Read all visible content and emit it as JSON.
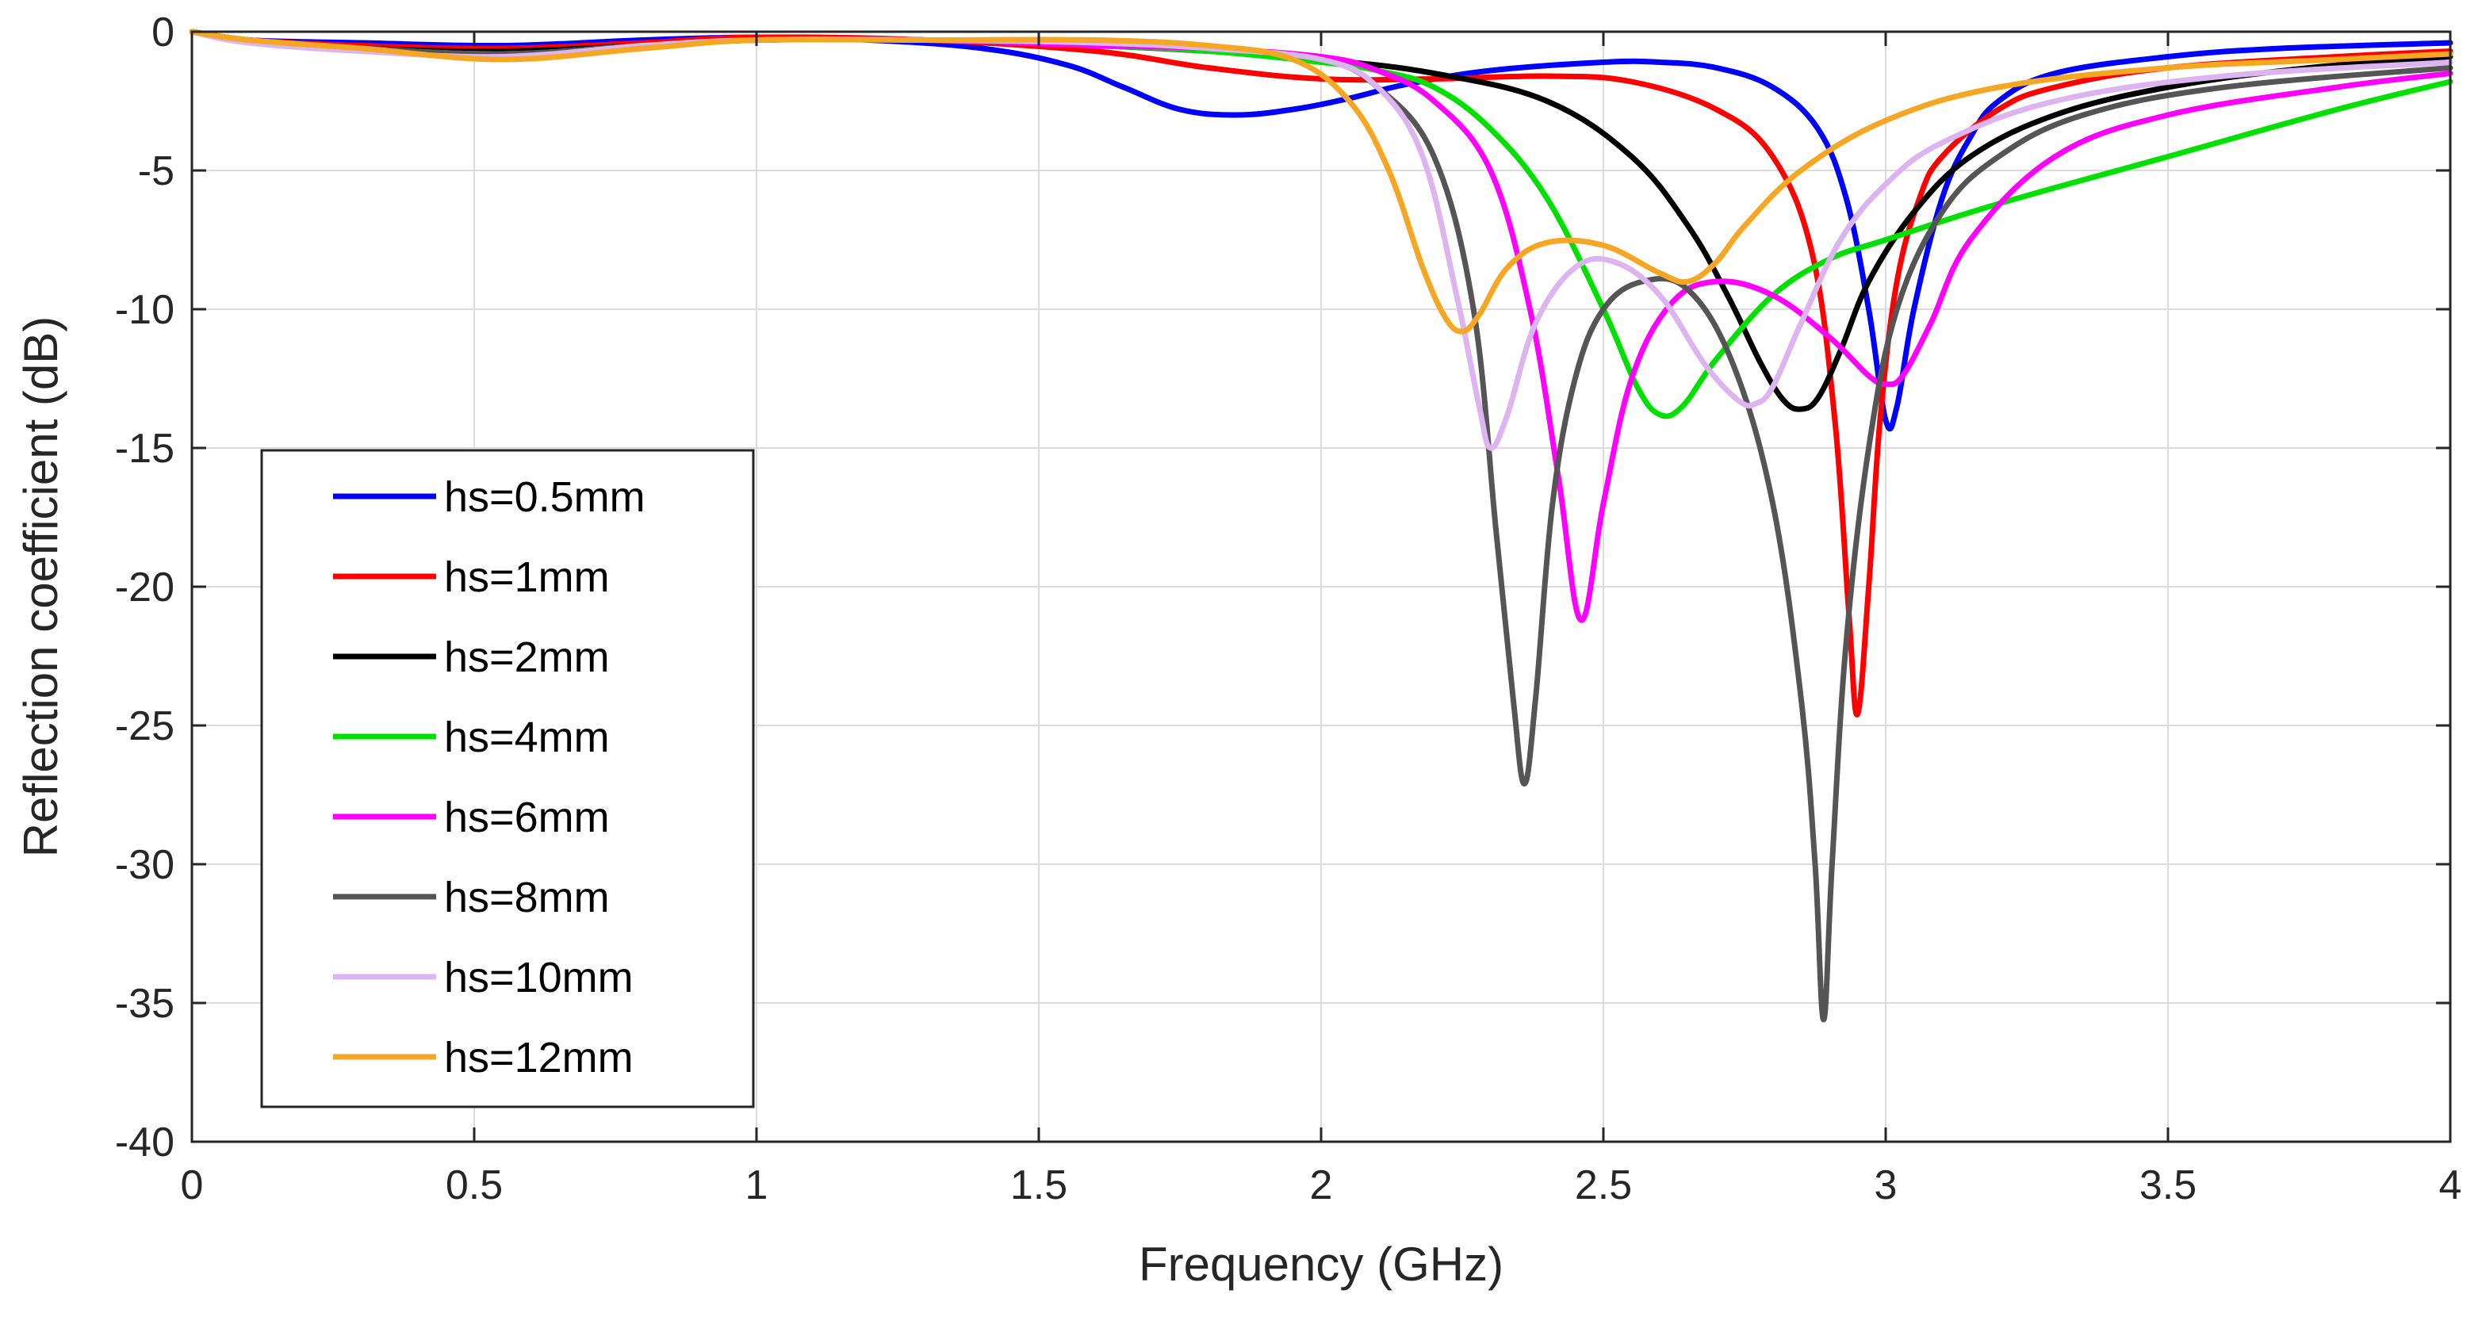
{
  "chart_data": {
    "type": "line",
    "title": "",
    "xlabel": "Frequency (GHz)",
    "ylabel": "Reflection coefficient (dB)",
    "xlim": [
      0,
      4
    ],
    "ylim": [
      -40,
      0
    ],
    "xticks": [
      0,
      0.5,
      1,
      1.5,
      2,
      2.5,
      3,
      3.5,
      4
    ],
    "xtick_labels": [
      "0",
      "0.5",
      "1",
      "1.5",
      "2",
      "2.5",
      "3",
      "3.5",
      "4"
    ],
    "yticks": [
      0,
      -5,
      -10,
      -15,
      -20,
      -25,
      -30,
      -35,
      -40
    ],
    "ytick_labels": [
      "0",
      "-5",
      "-10",
      "-15",
      "-20",
      "-25",
      "-30",
      "-35",
      "-40"
    ],
    "grid": true,
    "legend_position": "bottom-left",
    "series": [
      {
        "name": "hs=0.5mm",
        "color": "#0000ff",
        "x": [
          0,
          0.1,
          0.3,
          0.55,
          0.8,
          1.0,
          1.2,
          1.4,
          1.55,
          1.65,
          1.75,
          1.85,
          1.95,
          2.05,
          2.15,
          2.3,
          2.5,
          2.6,
          2.7,
          2.8,
          2.88,
          2.93,
          2.97,
          3.0,
          3.02,
          3.05,
          3.1,
          3.15,
          3.2,
          3.3,
          3.5,
          3.7,
          4.0
        ],
        "y": [
          0,
          -0.3,
          -0.4,
          -0.5,
          -0.3,
          -0.2,
          -0.3,
          -0.6,
          -1.2,
          -2.0,
          -2.8,
          -3.0,
          -2.8,
          -2.4,
          -1.9,
          -1.4,
          -1.1,
          -1.1,
          -1.3,
          -2.0,
          -3.5,
          -6.0,
          -10.0,
          -14.0,
          -13.5,
          -10.0,
          -6.0,
          -3.8,
          -2.5,
          -1.5,
          -0.9,
          -0.6,
          -0.4
        ]
      },
      {
        "name": "hs=1mm",
        "color": "#ff0000",
        "x": [
          0,
          0.1,
          0.3,
          0.55,
          0.8,
          1.0,
          1.3,
          1.6,
          1.8,
          2.0,
          2.2,
          2.4,
          2.55,
          2.7,
          2.8,
          2.87,
          2.91,
          2.935,
          2.95,
          2.97,
          2.99,
          3.02,
          3.06,
          3.1,
          3.2,
          3.3,
          3.5,
          3.8,
          4.0
        ],
        "y": [
          0,
          -0.3,
          -0.5,
          -0.6,
          -0.4,
          -0.2,
          -0.3,
          -0.7,
          -1.3,
          -1.7,
          -1.7,
          -1.6,
          -1.8,
          -2.8,
          -4.5,
          -8.0,
          -14.0,
          -21.0,
          -24.6,
          -20.0,
          -14.0,
          -9.0,
          -6.0,
          -4.5,
          -2.8,
          -2.0,
          -1.3,
          -0.9,
          -0.7
        ]
      },
      {
        "name": "hs=2mm",
        "color": "#000000",
        "x": [
          0,
          0.1,
          0.3,
          0.55,
          0.8,
          1.0,
          1.3,
          1.6,
          1.8,
          2.0,
          2.2,
          2.4,
          2.55,
          2.65,
          2.72,
          2.78,
          2.82,
          2.85,
          2.88,
          2.92,
          2.97,
          3.05,
          3.15,
          3.3,
          3.5,
          3.75,
          4.0
        ],
        "y": [
          0,
          -0.3,
          -0.6,
          -0.7,
          -0.5,
          -0.3,
          -0.3,
          -0.5,
          -0.7,
          -1.0,
          -1.5,
          -2.5,
          -4.5,
          -7.0,
          -9.5,
          -12.0,
          -13.3,
          -13.6,
          -13.2,
          -11.5,
          -9.0,
          -6.5,
          -4.5,
          -3.0,
          -2.0,
          -1.3,
          -0.9
        ]
      },
      {
        "name": "hs=4mm",
        "color": "#00e000",
        "x": [
          0,
          0.1,
          0.3,
          0.55,
          0.8,
          1.0,
          1.3,
          1.6,
          1.8,
          2.0,
          2.1,
          2.2,
          2.3,
          2.4,
          2.5,
          2.56,
          2.6,
          2.64,
          2.7,
          2.8,
          2.9,
          3.0,
          3.2,
          3.5,
          3.8,
          4.0
        ],
        "y": [
          0,
          -0.3,
          -0.6,
          -0.8,
          -0.5,
          -0.3,
          -0.3,
          -0.5,
          -0.7,
          -1.1,
          -1.4,
          -2.0,
          -3.5,
          -6.0,
          -10.0,
          -12.8,
          -13.8,
          -13.5,
          -11.8,
          -9.5,
          -8.2,
          -7.5,
          -6.2,
          -4.5,
          -2.8,
          -1.8
        ]
      },
      {
        "name": "hs=6mm",
        "color": "#ff00ff",
        "x": [
          0,
          0.1,
          0.3,
          0.55,
          0.8,
          1.0,
          1.3,
          1.6,
          1.8,
          2.0,
          2.1,
          2.2,
          2.3,
          2.37,
          2.42,
          2.46,
          2.5,
          2.55,
          2.62,
          2.7,
          2.8,
          2.9,
          2.97,
          3.0,
          3.03,
          3.08,
          3.15,
          3.3,
          3.5,
          3.8,
          4.0
        ],
        "y": [
          0,
          -0.3,
          -0.6,
          -0.8,
          -0.5,
          -0.3,
          -0.3,
          -0.5,
          -0.6,
          -0.9,
          -1.4,
          -2.5,
          -5.0,
          -10.0,
          -16.0,
          -21.2,
          -17.0,
          -12.5,
          -9.8,
          -9.0,
          -9.5,
          -11.0,
          -12.4,
          -12.7,
          -12.4,
          -10.5,
          -7.5,
          -4.5,
          -3.0,
          -2.0,
          -1.5
        ]
      },
      {
        "name": "hs=8mm",
        "color": "#555555",
        "x": [
          0,
          0.1,
          0.3,
          0.55,
          0.8,
          1.0,
          1.3,
          1.6,
          1.8,
          2.0,
          2.1,
          2.2,
          2.27,
          2.31,
          2.34,
          2.36,
          2.38,
          2.41,
          2.45,
          2.5,
          2.57,
          2.65,
          2.73,
          2.8,
          2.85,
          2.875,
          2.89,
          2.905,
          2.93,
          2.97,
          3.02,
          3.1,
          3.2,
          3.35,
          3.6,
          4.0
        ],
        "y": [
          0,
          -0.3,
          -0.6,
          -0.8,
          -0.5,
          -0.3,
          -0.3,
          -0.4,
          -0.6,
          -1.0,
          -2.0,
          -4.5,
          -10.0,
          -18.0,
          -24.0,
          -27.1,
          -24.0,
          -17.0,
          -12.5,
          -10.0,
          -9.0,
          -9.3,
          -12.0,
          -17.0,
          -24.0,
          -30.0,
          -35.6,
          -30.0,
          -22.0,
          -15.0,
          -10.0,
          -6.5,
          -4.5,
          -3.0,
          -2.0,
          -1.3
        ]
      },
      {
        "name": "hs=10mm",
        "color": "#dcb4f0",
        "x": [
          0,
          0.1,
          0.3,
          0.55,
          0.8,
          1.0,
          1.3,
          1.6,
          1.8,
          2.0,
          2.1,
          2.18,
          2.24,
          2.28,
          2.3,
          2.33,
          2.38,
          2.45,
          2.52,
          2.6,
          2.68,
          2.74,
          2.77,
          2.8,
          2.85,
          2.92,
          3.0,
          3.1,
          3.3,
          3.6,
          4.0
        ],
        "y": [
          0,
          -0.4,
          -0.7,
          -0.9,
          -0.5,
          -0.3,
          -0.3,
          -0.4,
          -0.6,
          -1.0,
          -2.0,
          -4.5,
          -9.5,
          -13.5,
          -15.0,
          -13.8,
          -10.5,
          -8.5,
          -8.3,
          -9.5,
          -12.0,
          -13.3,
          -13.4,
          -12.8,
          -10.5,
          -7.5,
          -5.5,
          -4.0,
          -2.5,
          -1.6,
          -1.1
        ]
      },
      {
        "name": "hs=12mm",
        "color": "#f5a623",
        "x": [
          0,
          0.1,
          0.3,
          0.55,
          0.8,
          1.0,
          1.3,
          1.6,
          1.8,
          1.95,
          2.05,
          2.12,
          2.18,
          2.22,
          2.25,
          2.28,
          2.33,
          2.4,
          2.5,
          2.6,
          2.65,
          2.7,
          2.75,
          2.85,
          3.0,
          3.2,
          3.5,
          3.8,
          4.0
        ],
        "y": [
          0,
          -0.3,
          -0.6,
          -1.0,
          -0.6,
          -0.3,
          -0.3,
          -0.3,
          -0.5,
          -1.0,
          -2.5,
          -5.0,
          -8.5,
          -10.3,
          -10.8,
          -10.2,
          -8.5,
          -7.6,
          -7.7,
          -8.7,
          -9.0,
          -8.3,
          -7.0,
          -5.0,
          -3.2,
          -2.0,
          -1.3,
          -1.0,
          -0.8
        ]
      }
    ]
  }
}
